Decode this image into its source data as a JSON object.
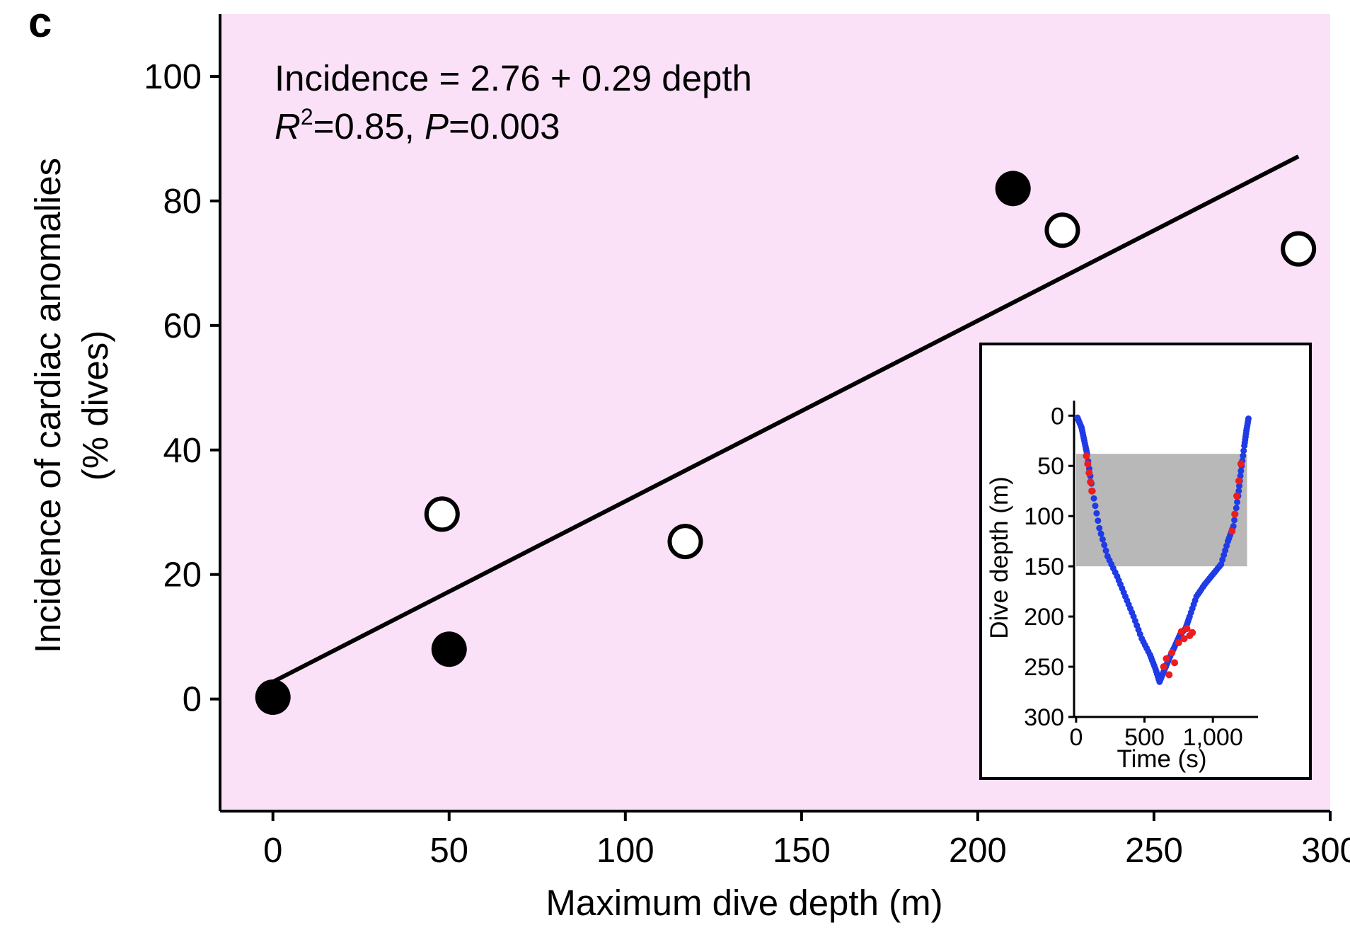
{
  "panel_label": "c",
  "colors": {
    "plot_background": "#fae1f8",
    "regression_line": "#000000",
    "filled_marker": "#000000",
    "open_marker": "#ffffff",
    "inset_shaded_band": "#b8b8b8",
    "inset_descent_ascent": "#1f3be6",
    "inset_anomaly": "#ee1d1d"
  },
  "chart_data": [
    {
      "type": "scatter",
      "equation_line1": "Incidence = 2.76 + 0.29 depth",
      "stats": {
        "r_symbol": "R",
        "r_exp": "2",
        "r_value": "=0.85, ",
        "p_symbol": "P",
        "p_value": "=0.003"
      },
      "xlabel": "Maximum dive depth (m)",
      "ylabel_line1": "Incidence of cardiac anomalies",
      "ylabel_line2": "(% dives)",
      "xlim": [
        -15,
        300
      ],
      "ylim": [
        -18,
        110
      ],
      "x_ticks": [
        0,
        50,
        100,
        150,
        200,
        250,
        300
      ],
      "x_tick_labels": [
        "0",
        "50",
        "100",
        "150",
        "200",
        "250",
        "300"
      ],
      "y_ticks": [
        0,
        20,
        40,
        60,
        80,
        100
      ],
      "y_tick_labels": [
        "0",
        "20",
        "40",
        "60",
        "80",
        "100"
      ],
      "regression": {
        "intercept": 2.76,
        "slope": 0.29,
        "x_range": [
          0,
          291
        ]
      },
      "series": [
        {
          "marker": "filled",
          "points": [
            {
              "x": 0,
              "y": 0.3
            },
            {
              "x": 50,
              "y": 8
            },
            {
              "x": 210,
              "y": 82
            }
          ]
        },
        {
          "marker": "open",
          "points": [
            {
              "x": 48,
              "y": 29.7
            },
            {
              "x": 117,
              "y": 25.3
            },
            {
              "x": 224,
              "y": 75.3
            },
            {
              "x": 291,
              "y": 72.3
            }
          ]
        }
      ],
      "grid": false
    },
    {
      "type": "line",
      "role": "inset",
      "xlabel": "Time (s)",
      "ylabel": "Dive depth (m)",
      "xlim": [
        -15,
        1330
      ],
      "ylim": [
        300,
        -15
      ],
      "y_inverted": true,
      "x_ticks": [
        0,
        500,
        1000
      ],
      "x_tick_labels": [
        "0",
        "500",
        "1,000"
      ],
      "y_ticks": [
        0,
        50,
        100,
        150,
        200,
        250,
        300
      ],
      "y_tick_labels": [
        "0",
        "50",
        "100",
        "150",
        "200",
        "250",
        "300"
      ],
      "shaded_band": {
        "depth_from": 38,
        "depth_to": 150,
        "time_from": 0,
        "time_to": 1250
      },
      "profile": [
        {
          "t": 10,
          "d": 2
        },
        {
          "t": 40,
          "d": 12
        },
        {
          "t": 60,
          "d": 25
        },
        {
          "t": 80,
          "d": 38
        },
        {
          "t": 120,
          "d": 75
        },
        {
          "t": 170,
          "d": 112
        },
        {
          "t": 230,
          "d": 140
        },
        {
          "t": 300,
          "d": 160
        },
        {
          "t": 360,
          "d": 180
        },
        {
          "t": 420,
          "d": 200
        },
        {
          "t": 480,
          "d": 222
        },
        {
          "t": 540,
          "d": 238
        },
        {
          "t": 580,
          "d": 252
        },
        {
          "t": 610,
          "d": 265
        },
        {
          "t": 640,
          "d": 255
        },
        {
          "t": 680,
          "d": 242
        },
        {
          "t": 720,
          "d": 230
        },
        {
          "t": 760,
          "d": 218
        },
        {
          "t": 800,
          "d": 212
        },
        {
          "t": 830,
          "d": 200
        },
        {
          "t": 880,
          "d": 180
        },
        {
          "t": 940,
          "d": 168
        },
        {
          "t": 1000,
          "d": 158
        },
        {
          "t": 1060,
          "d": 148
        },
        {
          "t": 1110,
          "d": 125
        },
        {
          "t": 1150,
          "d": 110
        },
        {
          "t": 1185,
          "d": 80
        },
        {
          "t": 1205,
          "d": 55
        },
        {
          "t": 1230,
          "d": 30
        },
        {
          "t": 1245,
          "d": 15
        },
        {
          "t": 1260,
          "d": 3
        }
      ],
      "anomalies": [
        {
          "t": 75,
          "d": 40
        },
        {
          "t": 85,
          "d": 48
        },
        {
          "t": 95,
          "d": 57
        },
        {
          "t": 105,
          "d": 66
        },
        {
          "t": 115,
          "d": 75
        },
        {
          "t": 640,
          "d": 250
        },
        {
          "t": 660,
          "d": 242
        },
        {
          "t": 680,
          "d": 258
        },
        {
          "t": 700,
          "d": 236
        },
        {
          "t": 720,
          "d": 246
        },
        {
          "t": 750,
          "d": 226
        },
        {
          "t": 770,
          "d": 215
        },
        {
          "t": 790,
          "d": 222
        },
        {
          "t": 810,
          "d": 212
        },
        {
          "t": 830,
          "d": 219
        },
        {
          "t": 850,
          "d": 216
        },
        {
          "t": 1140,
          "d": 115
        },
        {
          "t": 1160,
          "d": 98
        },
        {
          "t": 1175,
          "d": 80
        },
        {
          "t": 1190,
          "d": 65
        },
        {
          "t": 1205,
          "d": 48
        }
      ]
    }
  ]
}
